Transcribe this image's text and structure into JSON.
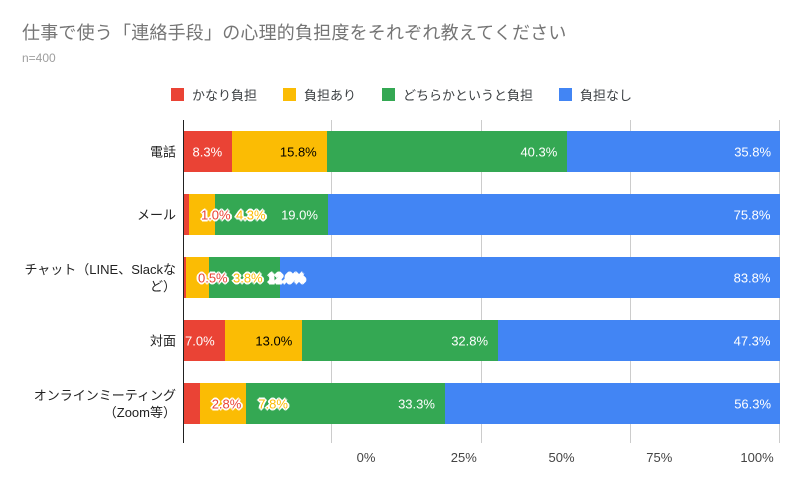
{
  "title": "仕事で使う「連絡手段」の心理的負担度をそれぞれ教えてください",
  "subtitle": "n=400",
  "chart_data": {
    "type": "bar",
    "orientation": "horizontal",
    "stacked": true,
    "title": "仕事で使う「連絡手段」の心理的負担度をそれぞれ教えてください",
    "subtitle": "n=400",
    "value_suffix": "%",
    "xlim": [
      0,
      100
    ],
    "grid": true,
    "legend_position": "top-center",
    "categories": [
      "電話",
      "メール",
      "チャット（LINE、Slackな\nど）",
      "対面",
      "オンラインミーティング\n（Zoom等）"
    ],
    "x_ticks": [
      "0%",
      "25%",
      "50%",
      "75%",
      "100%"
    ],
    "series": [
      {
        "name": "かなり負担",
        "color": "#EA4335",
        "label_color": "#ffffff",
        "values": [
          8.3,
          1.0,
          0.5,
          7.0,
          2.8
        ]
      },
      {
        "name": "負担あり",
        "color": "#FBBC04",
        "label_color": "#000000",
        "values": [
          15.8,
          4.3,
          3.8,
          13.0,
          7.8
        ]
      },
      {
        "name": "どちらかというと負担",
        "color": "#34A853",
        "label_color": "#ffffff",
        "values": [
          40.3,
          19.0,
          12.0,
          32.8,
          33.3
        ]
      },
      {
        "name": "負担なし",
        "color": "#4285F4",
        "label_color": "#ffffff",
        "values": [
          35.8,
          75.8,
          83.8,
          47.3,
          56.3
        ]
      }
    ]
  },
  "colors": {
    "grid": "#cccccc",
    "axis_line": "#212121",
    "title_text": "#757575",
    "subtitle_text": "#9e9e9e"
  }
}
